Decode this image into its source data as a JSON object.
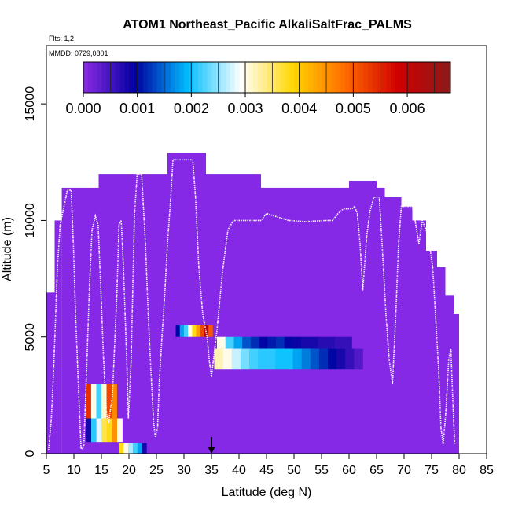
{
  "chart_data": {
    "type": "heatmap",
    "title": "ATOM1 Northeast_Pacific AlkaliSaltFrac_PALMS",
    "flights_text": "Flts: 1,2",
    "date_text": "MMDD: 0729,0801",
    "xlabel": "Latitude (deg N)",
    "ylabel": "Altitude (m)",
    "xlim": [
      5,
      85
    ],
    "ylim": [
      0,
      17500
    ],
    "x_ticks": [
      "5",
      "10",
      "15",
      "20",
      "25",
      "30",
      "35",
      "40",
      "45",
      "50",
      "55",
      "60",
      "65",
      "70",
      "75",
      "80",
      "85"
    ],
    "y_ticks": [
      "0",
      "5000",
      "10000",
      "15000"
    ],
    "colorbar": {
      "range": [
        0,
        0.0068
      ],
      "tick_labels": [
        "0.000",
        "0.001",
        "0.002",
        "0.003",
        "0.004",
        "0.005",
        "0.006"
      ],
      "colors": [
        "#8a2be2",
        "#0000a0",
        "#00bfff",
        "#ffffff",
        "#ffd700",
        "#ff6a00",
        "#d00000",
        "#8b1a1a"
      ]
    },
    "background_color": "#8629e6",
    "arrow_latitude": 35,
    "coverage_columns": [
      {
        "x0": 5,
        "x1": 6.5,
        "top": 6900
      },
      {
        "x0": 6.5,
        "x1": 7.8,
        "top": 10000
      },
      {
        "x0": 7.8,
        "x1": 10.5,
        "top": 11400
      },
      {
        "x0": 10.5,
        "x1": 14.5,
        "top": 11400
      },
      {
        "x0": 14.5,
        "x1": 22,
        "top": 12000
      },
      {
        "x0": 22,
        "x1": 27,
        "top": 12000
      },
      {
        "x0": 27,
        "x1": 34,
        "top": 12900
      },
      {
        "x0": 34,
        "x1": 44,
        "top": 12000
      },
      {
        "x0": 44,
        "x1": 60,
        "top": 11400
      },
      {
        "x0": 60,
        "x1": 65,
        "top": 11700
      },
      {
        "x0": 65,
        "x1": 66.5,
        "top": 11400
      },
      {
        "x0": 66.5,
        "x1": 69.5,
        "top": 11000
      },
      {
        "x0": 69.5,
        "x1": 71.5,
        "top": 10600
      },
      {
        "x0": 71.5,
        "x1": 74,
        "top": 10000
      },
      {
        "x0": 74,
        "x1": 76,
        "top": 8700
      },
      {
        "x0": 76,
        "x1": 77.5,
        "top": 8000
      },
      {
        "x0": 77.5,
        "x1": 79,
        "top": 6800
      },
      {
        "x0": 79,
        "x1": 80,
        "top": 6000
      }
    ],
    "cells": [
      {
        "lat0": 28.5,
        "lat1": 35.2,
        "alt0": 5000,
        "alt1": 5500,
        "values": [
          0.001,
          0.0018,
          0.0022,
          0.003,
          0.0038,
          0.0044,
          0.0052,
          0.0062,
          0.005
        ]
      },
      {
        "lat0": 36.0,
        "lat1": 60.5,
        "alt0": 4500,
        "alt1": 5000,
        "values": [
          0.003,
          0.0022,
          0.0018,
          0.0014,
          0.0012,
          0.001,
          0.0011,
          0.0012,
          0.001,
          0.0009,
          0.0008,
          0.0008,
          0.0007,
          0.0007,
          0.0006,
          0.0006
        ]
      },
      {
        "lat0": 35.5,
        "lat1": 62.5,
        "alt0": 3600,
        "alt1": 4500,
        "values": [
          0.0032,
          0.003,
          0.0027,
          0.0024,
          0.0022,
          0.0021,
          0.0021,
          0.002,
          0.002,
          0.0018,
          0.0016,
          0.0014,
          0.0012,
          0.001,
          0.0008,
          0.0006,
          0.0004
        ]
      },
      {
        "lat0": 12.2,
        "lat1": 17.8,
        "alt0": 1500,
        "alt1": 3000,
        "values": [
          0.0054,
          0.003,
          0.0022,
          0.0031,
          0.0052,
          0.0046
        ]
      },
      {
        "lat0": 12.2,
        "lat1": 18.8,
        "alt0": 500,
        "alt1": 1500,
        "values": [
          0.0008,
          0.0021,
          0.0028,
          0.0036,
          0.0038,
          0.0045,
          0.003
        ]
      },
      {
        "lat0": 18.2,
        "lat1": 23.2,
        "alt0": 0,
        "alt1": 450,
        "values": [
          0.0038,
          0.003,
          0.0026,
          0.0022,
          0.0018,
          0.0008
        ]
      }
    ],
    "flight_track": [
      [
        5.4,
        150
      ],
      [
        5.9,
        1500
      ],
      [
        6.3,
        3500
      ],
      [
        6.7,
        6000
      ],
      [
        7.0,
        8000
      ],
      [
        7.5,
        9800
      ],
      [
        8.2,
        10600
      ],
      [
        8.8,
        11300
      ],
      [
        9.5,
        11300
      ],
      [
        9.9,
        9000
      ],
      [
        10.3,
        6000
      ],
      [
        10.8,
        3000
      ],
      [
        11.3,
        200
      ],
      [
        11.8,
        300
      ],
      [
        12.3,
        3500
      ],
      [
        12.8,
        7000
      ],
      [
        13.3,
        9600
      ],
      [
        13.9,
        10200
      ],
      [
        14.4,
        9800
      ],
      [
        14.9,
        7000
      ],
      [
        15.4,
        4000
      ],
      [
        15.9,
        1800
      ],
      [
        16.3,
        1300
      ],
      [
        17.0,
        2500
      ],
      [
        17.8,
        6800
      ],
      [
        18.2,
        9800
      ],
      [
        18.6,
        10000
      ],
      [
        19.0,
        8000
      ],
      [
        19.6,
        4000
      ],
      [
        19.9,
        1500
      ],
      [
        20.4,
        4000
      ],
      [
        21.0,
        10200
      ],
      [
        21.5,
        12000
      ],
      [
        22.3,
        12000
      ],
      [
        23.0,
        9000
      ],
      [
        23.5,
        6000
      ],
      [
        24.0,
        3500
      ],
      [
        24.5,
        1300
      ],
      [
        24.8,
        700
      ],
      [
        25.2,
        1100
      ],
      [
        25.5,
        3000
      ],
      [
        26.0,
        5000
      ],
      [
        26.5,
        6800
      ],
      [
        27.0,
        9000
      ],
      [
        27.6,
        11000
      ],
      [
        28.0,
        12600
      ],
      [
        31.0,
        12600
      ],
      [
        31.6,
        12600
      ],
      [
        32.1,
        11000
      ],
      [
        32.7,
        8000
      ],
      [
        33.4,
        6000
      ],
      [
        34.2,
        5000
      ],
      [
        34.6,
        4000
      ],
      [
        35.0,
        3300
      ],
      [
        35.5,
        4300
      ],
      [
        36.0,
        5300
      ],
      [
        37.0,
        7800
      ],
      [
        38.0,
        9600
      ],
      [
        39.0,
        10000
      ],
      [
        44.0,
        10000
      ],
      [
        45.0,
        10300
      ],
      [
        49.0,
        10000
      ],
      [
        52.0,
        9950
      ],
      [
        56.0,
        10000
      ],
      [
        57.0,
        10000
      ],
      [
        58.0,
        10300
      ],
      [
        59.0,
        10500
      ],
      [
        60.5,
        10500
      ],
      [
        61.0,
        10600
      ],
      [
        61.5,
        10300
      ],
      [
        62.0,
        9000
      ],
      [
        62.5,
        7000
      ],
      [
        63.2,
        9300
      ],
      [
        63.8,
        10400
      ],
      [
        64.5,
        11000
      ],
      [
        65.5,
        11000
      ],
      [
        66.0,
        9000
      ],
      [
        66.7,
        6000
      ],
      [
        67.3,
        4000
      ],
      [
        67.9,
        3000
      ],
      [
        68.5,
        6000
      ],
      [
        69.0,
        9000
      ],
      [
        69.5,
        10600
      ],
      [
        71.5,
        10600
      ],
      [
        72.0,
        10000
      ],
      [
        72.7,
        9000
      ],
      [
        73.3,
        10000
      ],
      [
        74.0,
        9600
      ],
      [
        74.6,
        9000
      ],
      [
        75.2,
        8000
      ],
      [
        75.7,
        6000
      ],
      [
        76.3,
        3500
      ],
      [
        76.7,
        1100
      ],
      [
        77.1,
        400
      ],
      [
        77.6,
        1800
      ],
      [
        78.1,
        4000
      ],
      [
        78.5,
        4500
      ],
      [
        78.9,
        2000
      ],
      [
        79.2,
        400
      ]
    ]
  }
}
